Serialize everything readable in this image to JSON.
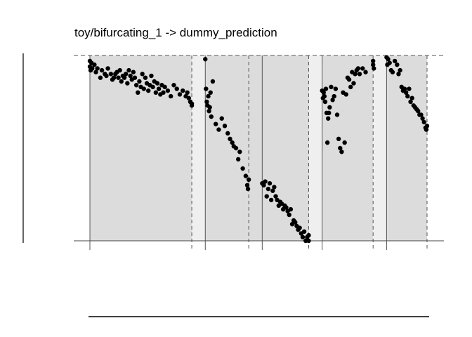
{
  "chart_data": {
    "type": "scatter",
    "title": "toy/bifurcating_1 -> dummy_prediction",
    "xlabel": "",
    "ylabel": "",
    "xlim": [
      0,
      22.5
    ],
    "ylim": [
      0,
      1
    ],
    "grid": false,
    "shaded_panels": [
      {
        "x0": 0.0,
        "x1": 6.8,
        "fill": "#dcdcdc"
      },
      {
        "x0": 6.8,
        "x1": 7.7,
        "fill": "#efefef"
      },
      {
        "x0": 7.7,
        "x1": 11.5,
        "fill": "#dcdcdc"
      },
      {
        "x0": 11.5,
        "x1": 14.6,
        "fill": "#dcdcdc"
      },
      {
        "x0": 14.6,
        "x1": 15.5,
        "fill": "#efefef"
      },
      {
        "x0": 15.5,
        "x1": 18.9,
        "fill": "#dcdcdc"
      },
      {
        "x0": 18.9,
        "x1": 19.8,
        "fill": "#efefef"
      },
      {
        "x0": 19.8,
        "x1": 22.5,
        "fill": "#dcdcdc"
      }
    ],
    "solid_lines_x": [
      0.0,
      7.7,
      11.5,
      15.5,
      19.8
    ],
    "dashed_lines_x": [
      6.8,
      10.6,
      14.6,
      18.9,
      22.5
    ],
    "dashed_line_y": 1.0,
    "series": [
      {
        "x": [
          0.0,
          0.0,
          0.05,
          0.1,
          0.15,
          0.3,
          0.4,
          0.5,
          0.7,
          0.8,
          1.0,
          1.1,
          1.2,
          1.4,
          1.5,
          1.6,
          1.7,
          1.8,
          1.9,
          2.0,
          2.1,
          2.2,
          2.3,
          2.4,
          2.5,
          2.6,
          2.7,
          2.8,
          2.9,
          3.0,
          3.1,
          3.2,
          3.3,
          3.4,
          3.5,
          3.6,
          3.7,
          3.8,
          3.9,
          4.0,
          4.1,
          4.2,
          4.3,
          4.4,
          4.5,
          4.6,
          4.7,
          4.8,
          4.9,
          5.0,
          5.2,
          5.4,
          5.6,
          5.8,
          6.0,
          6.2,
          6.4,
          6.5,
          6.6,
          6.7,
          6.8,
          6.8
        ],
        "y": [
          0.97,
          0.94,
          0.92,
          0.96,
          0.93,
          0.95,
          0.91,
          0.93,
          0.88,
          0.92,
          0.9,
          0.89,
          0.93,
          0.9,
          0.87,
          0.88,
          0.9,
          0.91,
          0.88,
          0.92,
          0.86,
          0.89,
          0.88,
          0.9,
          0.85,
          0.92,
          0.89,
          0.87,
          0.91,
          0.88,
          0.84,
          0.8,
          0.86,
          0.83,
          0.9,
          0.82,
          0.88,
          0.85,
          0.81,
          0.84,
          0.89,
          0.83,
          0.86,
          0.8,
          0.85,
          0.82,
          0.79,
          0.84,
          0.8,
          0.83,
          0.81,
          0.78,
          0.84,
          0.82,
          0.79,
          0.81,
          0.78,
          0.8,
          0.77,
          0.75,
          0.74,
          0.73
        ]
      },
      {
        "x": [
          7.7,
          7.75,
          7.8,
          7.85,
          7.9,
          7.95,
          8.0,
          8.05,
          8.1,
          8.2,
          8.4,
          8.6,
          8.8,
          9.0,
          9.2,
          9.35,
          9.5,
          9.6,
          9.75,
          9.9,
          10.0,
          10.2,
          10.4,
          10.5,
          10.55,
          10.6
        ],
        "y": [
          0.98,
          0.82,
          0.75,
          0.73,
          0.78,
          0.7,
          0.72,
          0.8,
          0.67,
          0.86,
          0.63,
          0.6,
          0.66,
          0.62,
          0.58,
          0.55,
          0.53,
          0.51,
          0.5,
          0.44,
          0.48,
          0.39,
          0.35,
          0.3,
          0.28,
          0.33
        ]
      },
      {
        "x": [
          11.5,
          11.6,
          11.7,
          11.8,
          11.9,
          12.0,
          12.1,
          12.2,
          12.3,
          12.4,
          12.5,
          12.6,
          12.7,
          12.8,
          12.9,
          13.0,
          13.1,
          13.2,
          13.3,
          13.4,
          13.5,
          13.6,
          13.7,
          13.8,
          13.9,
          14.0,
          14.1,
          14.2,
          14.3,
          14.4,
          14.5,
          14.6,
          14.6
        ],
        "y": [
          0.31,
          0.3,
          0.32,
          0.24,
          0.28,
          0.31,
          0.22,
          0.27,
          0.29,
          0.24,
          0.22,
          0.19,
          0.21,
          0.2,
          0.17,
          0.19,
          0.18,
          0.16,
          0.14,
          0.17,
          0.09,
          0.11,
          0.1,
          0.08,
          0.06,
          0.07,
          0.04,
          0.02,
          0.05,
          0.0,
          0.02,
          0.03,
          0.0
        ]
      },
      {
        "x": [
          15.5,
          15.55,
          15.6,
          15.65,
          15.7,
          15.75,
          15.8,
          15.85,
          15.9,
          15.95,
          16.0,
          16.1,
          16.2,
          16.3,
          16.4,
          16.5,
          16.6,
          16.7,
          16.8,
          16.9,
          17.0,
          17.1,
          17.2,
          17.3,
          17.4,
          17.5,
          17.6,
          17.7,
          17.8,
          17.9,
          18.0,
          18.2,
          18.4,
          18.9,
          18.9,
          18.95
        ],
        "y": [
          0.81,
          0.77,
          0.8,
          0.78,
          0.75,
          0.82,
          0.69,
          0.53,
          0.66,
          0.69,
          0.72,
          0.83,
          0.76,
          0.78,
          0.82,
          0.68,
          0.55,
          0.5,
          0.48,
          0.8,
          0.53,
          0.79,
          0.88,
          0.87,
          0.83,
          0.91,
          0.85,
          0.9,
          0.92,
          0.93,
          0.9,
          0.93,
          0.91,
          0.97,
          0.95,
          0.93
        ]
      },
      {
        "x": [
          19.8,
          19.85,
          19.9,
          20.0,
          20.1,
          20.2,
          20.35,
          20.5,
          20.6,
          20.7,
          20.8,
          20.9,
          21.0,
          21.1,
          21.2,
          21.3,
          21.4,
          21.5,
          21.6,
          21.7,
          21.8,
          21.9,
          22.0,
          22.1,
          22.2,
          22.3,
          22.4,
          22.45,
          22.5
        ],
        "y": [
          0.99,
          0.95,
          0.98,
          0.96,
          0.92,
          0.91,
          0.97,
          0.95,
          0.9,
          0.92,
          0.83,
          0.81,
          0.82,
          0.8,
          0.78,
          0.82,
          0.75,
          0.77,
          0.73,
          0.72,
          0.71,
          0.7,
          0.68,
          0.68,
          0.66,
          0.64,
          0.61,
          0.6,
          0.62
        ]
      }
    ]
  }
}
